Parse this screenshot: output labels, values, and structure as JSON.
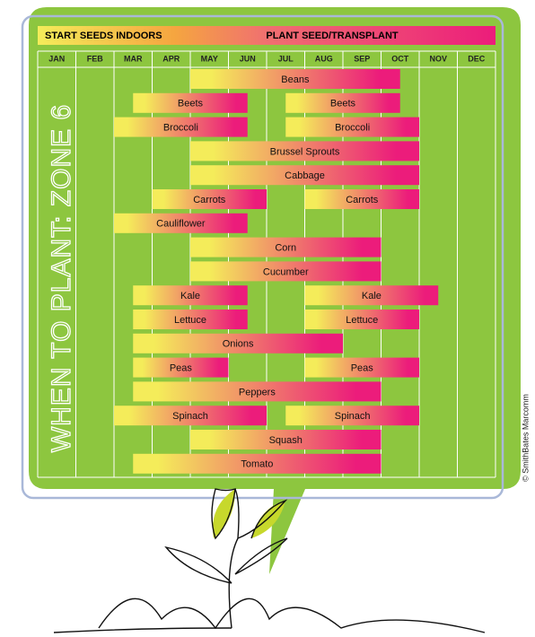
{
  "chart_data": {
    "type": "gantt",
    "title": "WHEN TO PLANT: ZONE 6",
    "legend": [
      "START SEEDS INDOORS",
      "PLANT SEED/TRANSPLANT"
    ],
    "credit": "© SmithBates Marcomm",
    "categories": [
      "JAN",
      "FEB",
      "MAR",
      "APR",
      "MAY",
      "JUN",
      "JUL",
      "AUG",
      "SEP",
      "OCT",
      "NOV",
      "DEC"
    ],
    "colors": [
      "#f4ec5a",
      "#ec1c7b"
    ],
    "rows": [
      {
        "name": "Beans",
        "bars": [
          {
            "start": 4,
            "end": 9.5
          }
        ]
      },
      {
        "name": "Beets",
        "bars": [
          {
            "start": 2.5,
            "end": 5.5
          },
          {
            "start": 6.5,
            "end": 9.5
          }
        ]
      },
      {
        "name": "Broccoli",
        "bars": [
          {
            "start": 2,
            "end": 5.5
          },
          {
            "start": 6.5,
            "end": 10
          }
        ]
      },
      {
        "name": "Brussel Sprouts",
        "bars": [
          {
            "start": 4,
            "end": 10
          }
        ]
      },
      {
        "name": "Cabbage",
        "bars": [
          {
            "start": 4,
            "end": 10
          }
        ]
      },
      {
        "name": "Carrots",
        "bars": [
          {
            "start": 3,
            "end": 6
          },
          {
            "start": 7,
            "end": 10
          }
        ]
      },
      {
        "name": "Cauliflower",
        "bars": [
          {
            "start": 2,
            "end": 5.5
          }
        ]
      },
      {
        "name": "Corn",
        "bars": [
          {
            "start": 4,
            "end": 9
          }
        ]
      },
      {
        "name": "Cucumber",
        "bars": [
          {
            "start": 4,
            "end": 9
          }
        ]
      },
      {
        "name": "Kale",
        "bars": [
          {
            "start": 2.5,
            "end": 5.5
          },
          {
            "start": 7,
            "end": 10.5
          }
        ]
      },
      {
        "name": "Lettuce",
        "bars": [
          {
            "start": 2.5,
            "end": 5.5
          },
          {
            "start": 7,
            "end": 10
          }
        ]
      },
      {
        "name": "Onions",
        "bars": [
          {
            "start": 2.5,
            "end": 8
          }
        ]
      },
      {
        "name": "Peas",
        "bars": [
          {
            "start": 2.5,
            "end": 5
          },
          {
            "start": 7,
            "end": 10
          }
        ]
      },
      {
        "name": "Peppers",
        "bars": [
          {
            "start": 2.5,
            "end": 9
          }
        ]
      },
      {
        "name": "Spinach",
        "bars": [
          {
            "start": 2,
            "end": 6
          },
          {
            "start": 6.5,
            "end": 10
          }
        ]
      },
      {
        "name": "Squash",
        "bars": [
          {
            "start": 4,
            "end": 9
          }
        ]
      },
      {
        "name": "Tomato",
        "bars": [
          {
            "start": 2.5,
            "end": 9
          }
        ]
      }
    ]
  }
}
